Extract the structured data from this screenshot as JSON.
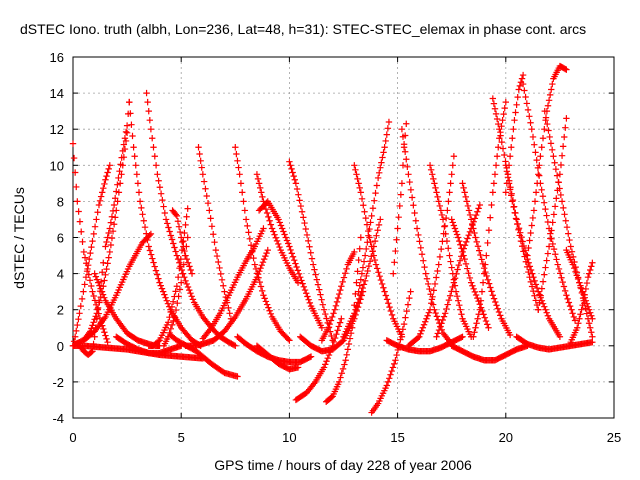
{
  "chart_data": {
    "type": "scatter",
    "title": "dSTEC Iono. truth (albh, Lon=236, Lat=48, h=31): STEC-STEC_elemax in phase cont. arcs",
    "xlabel": "GPS time / hours of day 228 of year 2006",
    "ylabel": "dSTEC  / TECUs",
    "xlim": [
      0,
      25
    ],
    "ylim": [
      -4,
      16
    ],
    "xticks": [
      "0",
      "5",
      "10",
      "15",
      "20",
      "25"
    ],
    "yticks": [
      "-4",
      "-2",
      "0",
      "2",
      "4",
      "6",
      "8",
      "10",
      "12",
      "14",
      "16"
    ],
    "grid": true,
    "marker": "+",
    "series_color": "#ff0000",
    "series": [
      {
        "x": [
          0.0,
          0.2,
          0.5,
          0.9,
          1.3,
          1.6
        ],
        "y": [
          11.2,
          8.0,
          5.2,
          3.0,
          1.3,
          0.2
        ]
      },
      {
        "x": [
          0.3,
          0.5,
          0.7,
          0.9,
          1.0,
          1.2,
          1.4
        ],
        "y": [
          0.0,
          -0.3,
          -0.5,
          -0.3,
          0.5,
          2.5,
          4.6
        ]
      },
      {
        "x": [
          0.1,
          0.3,
          0.6,
          1.0,
          1.5,
          2.0,
          2.6,
          3.2,
          3.6
        ],
        "y": [
          0.1,
          0.2,
          0.4,
          0.8,
          1.6,
          2.8,
          4.4,
          5.7,
          6.2
        ]
      },
      {
        "x": [
          0.0,
          0.1,
          0.3,
          0.6,
          0.9,
          1.2,
          1.5,
          1.7
        ],
        "y": [
          0.0,
          0.5,
          1.8,
          3.8,
          5.8,
          7.8,
          9.2,
          10.0
        ]
      },
      {
        "x": [
          0.0,
          0.2,
          0.5,
          1.0,
          1.5,
          2.0,
          2.5,
          3.0,
          3.5,
          4.0,
          4.5,
          5.0,
          5.5,
          6.0
        ],
        "y": [
          0.0,
          0.0,
          0.0,
          -0.05,
          -0.1,
          -0.15,
          -0.2,
          -0.3,
          -0.4,
          -0.5,
          -0.55,
          -0.6,
          -0.65,
          -0.7
        ]
      },
      {
        "x": [
          0.5,
          0.8,
          1.1,
          1.4,
          1.7,
          2.0,
          2.3,
          2.5
        ],
        "y": [
          0.3,
          0.8,
          1.8,
          3.3,
          5.2,
          7.5,
          10.0,
          11.8
        ]
      },
      {
        "x": [
          1.5,
          1.7,
          1.9,
          2.1,
          2.3,
          2.5,
          2.6
        ],
        "y": [
          5.5,
          6.5,
          7.8,
          9.3,
          10.8,
          12.2,
          13.5
        ]
      },
      {
        "x": [
          2.6,
          2.8,
          3.1,
          3.5,
          4.0,
          4.5,
          5.0,
          5.5,
          5.9
        ],
        "y": [
          13.5,
          11.0,
          8.0,
          5.5,
          3.5,
          2.0,
          1.0,
          0.3,
          0.0
        ]
      },
      {
        "x": [
          1.0,
          1.5,
          2.0,
          2.5,
          3.0,
          3.5,
          3.8,
          4.0
        ],
        "y": [
          4.0,
          2.5,
          1.5,
          0.7,
          0.3,
          0.1,
          0.0,
          0.0
        ]
      },
      {
        "x": [
          2.0,
          2.5,
          3.0,
          3.5,
          4.0,
          4.5,
          5.0
        ],
        "y": [
          0.5,
          0.1,
          -0.2,
          -0.4,
          -0.4,
          -0.2,
          0.0
        ]
      },
      {
        "x": [
          3.4,
          3.6,
          3.9,
          4.3,
          4.8,
          5.2,
          5.6,
          6.0,
          6.4,
          6.8,
          7.2,
          7.5
        ],
        "y": [
          14.0,
          12.0,
          9.5,
          7.0,
          5.0,
          3.6,
          2.4,
          1.6,
          1.0,
          0.5,
          0.2,
          0.0
        ]
      },
      {
        "x": [
          3.5,
          3.7,
          4.0,
          4.4,
          4.8,
          5.1,
          5.3
        ],
        "y": [
          0.0,
          0.0,
          0.3,
          1.3,
          3.3,
          5.8,
          7.6
        ]
      },
      {
        "x": [
          4.2,
          4.4,
          4.7,
          5.0,
          5.3
        ],
        "y": [
          0.0,
          0.5,
          1.6,
          3.5,
          6.0
        ]
      },
      {
        "x": [
          4.6,
          4.8,
          5.0,
          5.2,
          5.5
        ],
        "y": [
          7.5,
          7.2,
          6.0,
          5.0,
          4.0
        ]
      },
      {
        "x": [
          4.5,
          4.8,
          5.1,
          5.4,
          5.7,
          6.0,
          6.4,
          7.0,
          7.6
        ],
        "y": [
          0.6,
          0.3,
          0.1,
          -0.1,
          -0.3,
          -0.6,
          -1.0,
          -1.5,
          -1.7
        ]
      },
      {
        "x": [
          5.2,
          5.6,
          6.0,
          6.5,
          7.0,
          7.5,
          8.0,
          8.5,
          9.0
        ],
        "y": [
          0.0,
          0.0,
          0.1,
          0.3,
          0.8,
          1.6,
          2.6,
          3.8,
          5.3
        ]
      },
      {
        "x": [
          5.8,
          6.0,
          6.3,
          6.6,
          7.0,
          7.3
        ],
        "y": [
          11.0,
          9.5,
          7.5,
          5.3,
          3.0,
          1.5
        ]
      },
      {
        "x": [
          6.0,
          6.4,
          6.8,
          7.2,
          7.6,
          8.0,
          8.4,
          8.8
        ],
        "y": [
          0.4,
          1.0,
          1.8,
          2.8,
          3.8,
          4.7,
          5.5,
          6.5
        ]
      },
      {
        "x": [
          7.5,
          7.7,
          8.0,
          8.4,
          8.8,
          9.2,
          9.6,
          10.0
        ],
        "y": [
          11.0,
          9.5,
          7.0,
          4.5,
          2.8,
          1.6,
          0.8,
          0.3
        ]
      },
      {
        "x": [
          7.6,
          8.0,
          8.5,
          9.0,
          9.5,
          10.0,
          10.5,
          11.0
        ],
        "y": [
          0.5,
          0.1,
          -0.3,
          -0.6,
          -0.8,
          -0.9,
          -0.9,
          -0.6
        ]
      },
      {
        "x": [
          8.5,
          8.8,
          9.2,
          9.6,
          10.0,
          10.4
        ],
        "y": [
          9.5,
          8.0,
          6.5,
          5.3,
          4.3,
          3.5
        ]
      },
      {
        "x": [
          8.6,
          9.0,
          9.5,
          10.0,
          10.5,
          11.0,
          11.5
        ],
        "y": [
          7.5,
          8.0,
          7.0,
          5.5,
          3.8,
          2.2,
          1.0
        ]
      },
      {
        "x": [
          8.5,
          9.0,
          9.5,
          10.0,
          10.4
        ],
        "y": [
          0.0,
          -0.5,
          -1.0,
          -1.3,
          -1.2
        ]
      },
      {
        "x": [
          10.0,
          10.3,
          10.7,
          11.1,
          11.6,
          12.0
        ],
        "y": [
          10.2,
          9.0,
          6.8,
          4.5,
          2.0,
          0.3
        ]
      },
      {
        "x": [
          10.5,
          11.0,
          11.5,
          12.0,
          12.5,
          13.0,
          13.4
        ],
        "y": [
          0.5,
          0.0,
          -0.3,
          -0.2,
          0.3,
          1.5,
          3.0
        ]
      },
      {
        "x": [
          10.3,
          10.8,
          11.2,
          11.6,
          12.0,
          12.4
        ],
        "y": [
          -3.0,
          -2.6,
          -2.0,
          -1.2,
          0.0,
          1.5
        ]
      },
      {
        "x": [
          11.5,
          11.8,
          12.1,
          12.4,
          12.7,
          13.0
        ],
        "y": [
          0.3,
          1.0,
          2.0,
          3.3,
          4.5,
          5.2
        ]
      },
      {
        "x": [
          11.7,
          12.0,
          12.3,
          12.6,
          12.9,
          13.1,
          13.3
        ],
        "y": [
          -3.1,
          -2.8,
          -2.0,
          -0.8,
          1.0,
          3.5,
          6.0
        ]
      },
      {
        "x": [
          12.5,
          13.0,
          13.5,
          13.9,
          14.2
        ],
        "y": [
          0.5,
          1.8,
          3.6,
          5.5,
          7.0
        ]
      },
      {
        "x": [
          13.2,
          13.5,
          13.8,
          14.1,
          14.4,
          14.6
        ],
        "y": [
          3.0,
          5.0,
          7.2,
          9.3,
          11.0,
          12.4
        ]
      },
      {
        "x": [
          13.0,
          13.3,
          13.7,
          14.0,
          14.4,
          14.8,
          15.2
        ],
        "y": [
          10.0,
          8.5,
          6.0,
          4.5,
          3.0,
          1.5,
          0.5
        ]
      },
      {
        "x": [
          13.8,
          14.1,
          14.5,
          14.9,
          15.3,
          15.6
        ],
        "y": [
          -3.7,
          -3.2,
          -2.2,
          -0.8,
          1.2,
          3.0
        ]
      },
      {
        "x": [
          14.8,
          15.0,
          15.2,
          15.3,
          15.4
        ],
        "y": [
          4.0,
          6.5,
          9.0,
          11.0,
          12.3
        ]
      },
      {
        "x": [
          15.2,
          15.5,
          15.9,
          16.3,
          16.7,
          17.1,
          17.5
        ],
        "y": [
          12.0,
          9.5,
          6.5,
          4.0,
          2.0,
          0.7,
          0.1
        ]
      },
      {
        "x": [
          14.5,
          15.0,
          15.5,
          16.0,
          16.5,
          17.0,
          17.5,
          18.0
        ],
        "y": [
          0.3,
          0.0,
          -0.2,
          -0.3,
          -0.3,
          -0.1,
          0.2,
          0.5
        ]
      },
      {
        "x": [
          15.5,
          16.0,
          16.5,
          16.9,
          17.3,
          17.6
        ],
        "y": [
          0.0,
          0.5,
          2.0,
          4.5,
          7.5,
          10.5
        ]
      },
      {
        "x": [
          16.5,
          16.8,
          17.1,
          17.4,
          17.7,
          18.0,
          18.4
        ],
        "y": [
          10.0,
          8.5,
          7.0,
          5.0,
          3.0,
          1.5,
          0.5
        ]
      },
      {
        "x": [
          16.8,
          17.2,
          17.6,
          18.0,
          18.4,
          18.8
        ],
        "y": [
          0.5,
          1.8,
          3.5,
          5.2,
          6.5,
          7.8
        ]
      },
      {
        "x": [
          17.5,
          17.8,
          18.1,
          18.4,
          18.8,
          19.2
        ],
        "y": [
          7.0,
          6.0,
          4.8,
          3.5,
          2.3,
          1.0
        ]
      },
      {
        "x": [
          18.0,
          18.3,
          18.6,
          19.0,
          19.4,
          19.8,
          20.2
        ],
        "y": [
          9.0,
          7.5,
          6.0,
          4.3,
          2.8,
          1.5,
          0.6
        ]
      },
      {
        "x": [
          17.5,
          18.0,
          18.5,
          19.0,
          19.5,
          20.0,
          20.5,
          21.0
        ],
        "y": [
          0.0,
          -0.3,
          -0.6,
          -0.8,
          -0.8,
          -0.5,
          -0.2,
          0.0
        ]
      },
      {
        "x": [
          18.5,
          18.8,
          19.1,
          19.4,
          19.7,
          20.0
        ],
        "y": [
          0.5,
          2.0,
          5.0,
          8.5,
          11.5,
          13.5
        ]
      },
      {
        "x": [
          19.4,
          19.7,
          20.1,
          20.5,
          21.0,
          21.5,
          22.0,
          22.5
        ],
        "y": [
          13.7,
          12.0,
          9.5,
          7.0,
          4.8,
          3.0,
          1.5,
          0.5
        ]
      },
      {
        "x": [
          20.0,
          20.3,
          20.7,
          21.1,
          21.5
        ],
        "y": [
          10.0,
          8.0,
          5.8,
          3.8,
          2.0
        ]
      },
      {
        "x": [
          20.0,
          20.2,
          20.4,
          20.6,
          20.8
        ],
        "y": [
          8.5,
          10.5,
          12.5,
          14.2,
          15.0
        ]
      },
      {
        "x": [
          20.8,
          21.2,
          21.6,
          22.0,
          22.4,
          22.8,
          23.2
        ],
        "y": [
          14.5,
          12.0,
          9.0,
          6.5,
          4.5,
          2.8,
          1.4
        ]
      },
      {
        "x": [
          21.0,
          21.3,
          21.6,
          21.9,
          22.2,
          22.5,
          22.8
        ],
        "y": [
          5.0,
          7.5,
          10.5,
          13.0,
          14.8,
          15.5,
          15.3
        ]
      },
      {
        "x": [
          21.8,
          22.2,
          22.6,
          23.0,
          23.4,
          23.8,
          24.0
        ],
        "y": [
          13.0,
          10.5,
          8.0,
          5.5,
          3.5,
          1.5,
          0.5
        ]
      },
      {
        "x": [
          21.5,
          22.0,
          22.5,
          22.8
        ],
        "y": [
          2.0,
          5.5,
          9.5,
          12.6
        ]
      },
      {
        "x": [
          20.5,
          21.0,
          21.5,
          22.0,
          22.5,
          23.0,
          23.5,
          24.0
        ],
        "y": [
          0.5,
          0.1,
          -0.1,
          -0.2,
          -0.1,
          0.0,
          0.1,
          0.2
        ]
      },
      {
        "x": [
          22.8,
          23.1,
          23.4,
          23.7,
          24.0
        ],
        "y": [
          5.3,
          4.5,
          3.5,
          2.5,
          1.5
        ]
      },
      {
        "x": [
          23.0,
          23.3,
          23.6,
          23.8,
          24.0
        ],
        "y": [
          0.2,
          1.0,
          2.5,
          3.8,
          4.6
        ]
      }
    ]
  }
}
